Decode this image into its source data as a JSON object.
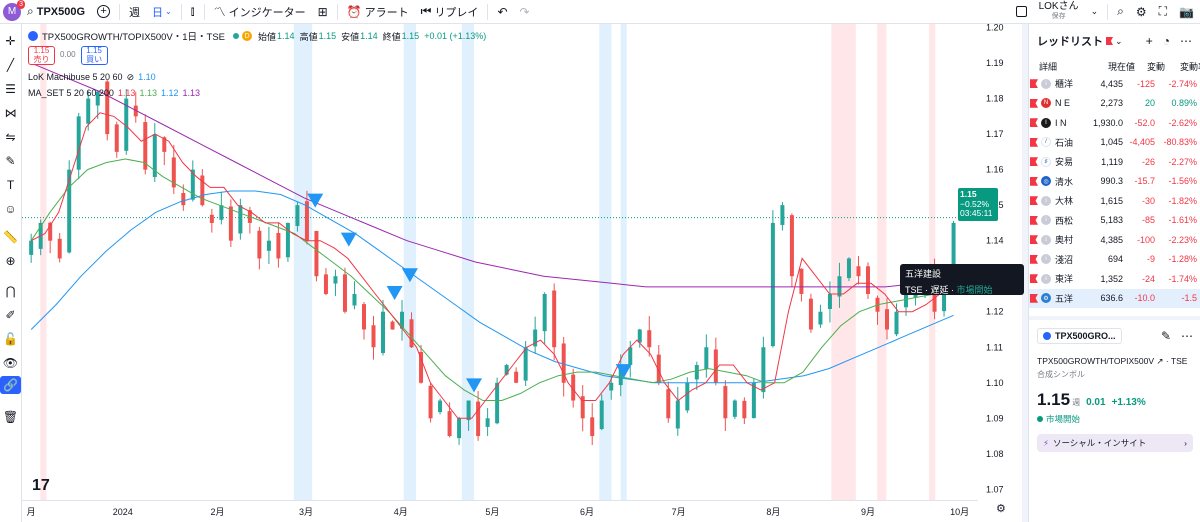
{
  "topbar": {
    "avatar_letter": "M",
    "avatar_badge": "3",
    "symbol": "TPX500G",
    "add_symbol": "+",
    "interval_week": "週",
    "interval_day": "日",
    "indicators": "インジケーター",
    "alert": "アラート",
    "replay": "リプレイ",
    "user_name": "LOKさん",
    "user_sub": "保存"
  },
  "legend": {
    "title": "TPX500GROWTH/TOPIX500V・1日・TSE",
    "d_badge": "D",
    "open_label": "始値",
    "open": "1.14",
    "high_label": "高値",
    "high": "1.15",
    "low_label": "安値",
    "low": "1.14",
    "close_label": "終値",
    "close": "1.15",
    "change": "+0.01 (+1.13%)",
    "sell_price": "1.15",
    "sell_label": "売り",
    "spread": "0.00",
    "buy_price": "1.15",
    "buy_label": "買い",
    "ind1_name": "LoK Machibuse 5 20 60",
    "ind1_v": "1.10",
    "ind2_name": "MA_SET 5 20 60 200",
    "ind2_v1": "1.13",
    "ind2_v2": "1.13",
    "ind2_v3": "1.12",
    "ind2_v4": "1.13"
  },
  "price_tag": {
    "price": "1.15",
    "pct": "−0.52%",
    "timer": "03:45:11"
  },
  "tooltip": {
    "name": "五洋建設",
    "exchange": "TSE",
    "delay": "遅延",
    "status": "市場開始"
  },
  "chart_data": {
    "type": "candlestick",
    "price_ticks": [
      "1.20",
      "1.19",
      "1.18",
      "1.17",
      "1.16",
      "1.15",
      "1.14",
      "1.13",
      "1.12",
      "1.11",
      "1.10",
      "1.09",
      "1.08",
      "1.07"
    ],
    "ylim": [
      1.067,
      1.201
    ],
    "time_ticks": [
      {
        "label": "月",
        "day": 0
      },
      {
        "label": "2024",
        "day": 30
      },
      {
        "label": "2月",
        "day": 61
      },
      {
        "label": "3月",
        "day": 90
      },
      {
        "label": "4月",
        "day": 121
      },
      {
        "label": "5月",
        "day": 151
      },
      {
        "label": "6月",
        "day": 182
      },
      {
        "label": "7月",
        "day": 212
      },
      {
        "label": "8月",
        "day": 243
      },
      {
        "label": "9月",
        "day": 274
      },
      {
        "label": "10月",
        "day": 304
      }
    ],
    "colors": {
      "up": "#26a69a",
      "down": "#ef5350",
      "ma5": "#f23645",
      "ma20": "#4caf50",
      "ma60": "#2196f3",
      "ma200": "#9c27b0",
      "signal": "#2196f3"
    },
    "close_path": [
      1.14,
      1.145,
      1.14,
      1.135,
      1.16,
      1.175,
      1.18,
      1.182,
      1.17,
      1.165,
      1.18,
      1.175,
      1.16,
      1.17,
      1.165,
      1.155,
      1.15,
      1.16,
      1.15,
      1.145,
      1.15,
      1.14,
      1.15,
      1.145,
      1.135,
      1.14,
      1.135,
      1.145,
      1.15,
      1.14,
      1.13,
      1.125,
      1.13,
      1.12,
      1.125,
      1.115,
      1.11,
      1.12,
      1.115,
      1.12,
      1.11,
      1.1,
      1.09,
      1.095,
      1.085,
      1.09,
      1.095,
      1.085,
      1.09,
      1.1,
      1.105,
      1.1,
      1.11,
      1.115,
      1.125,
      1.11,
      1.1,
      1.095,
      1.09,
      1.085,
      1.095,
      1.1,
      1.105,
      1.11,
      1.115,
      1.11,
      1.1,
      1.09,
      1.095,
      1.1,
      1.105,
      1.11,
      1.1,
      1.09,
      1.095,
      1.09,
      1.1,
      1.11,
      1.145,
      1.15,
      1.13,
      1.125,
      1.115,
      1.12,
      1.125,
      1.13,
      1.135,
      1.13,
      1.125,
      1.12,
      1.115,
      1.12,
      1.125,
      1.125,
      1.13,
      1.12,
      1.13,
      1.145
    ],
    "ma5": [
      1.14,
      1.142,
      1.148,
      1.16,
      1.172,
      1.176,
      1.175,
      1.172,
      1.168,
      1.17,
      1.168,
      1.162,
      1.158,
      1.155,
      1.155,
      1.15,
      1.148,
      1.145,
      1.145,
      1.142,
      1.14,
      1.14,
      1.138,
      1.135,
      1.13,
      1.125,
      1.12,
      1.115,
      1.11,
      1.1,
      1.095,
      1.09,
      1.09,
      1.095,
      1.1,
      1.105,
      1.11,
      1.112,
      1.108,
      1.1,
      1.095,
      1.095,
      1.1,
      1.108,
      1.112,
      1.108,
      1.1,
      1.095,
      1.098,
      1.1,
      1.105,
      1.105,
      1.1,
      1.098,
      1.1,
      1.12,
      1.135,
      1.13,
      1.125,
      1.125,
      1.128,
      1.128,
      1.125,
      1.12,
      1.12,
      1.122,
      1.125,
      1.13
    ],
    "ma20": [
      1.14,
      1.148,
      1.155,
      1.16,
      1.162,
      1.163,
      1.162,
      1.158,
      1.155,
      1.152,
      1.15,
      1.148,
      1.146,
      1.144,
      1.142,
      1.138,
      1.134,
      1.13,
      1.125,
      1.12,
      1.114,
      1.108,
      1.102,
      1.098,
      1.095,
      1.095,
      1.097,
      1.1,
      1.102,
      1.103,
      1.103,
      1.102,
      1.101,
      1.1,
      1.101,
      1.103,
      1.104,
      1.103,
      1.102,
      1.1,
      1.1,
      1.103,
      1.11,
      1.116,
      1.12,
      1.122,
      1.123,
      1.124,
      1.125,
      1.126
    ],
    "ma60": [
      1.115,
      1.122,
      1.13,
      1.137,
      1.143,
      1.148,
      1.151,
      1.153,
      1.154,
      1.154,
      1.153,
      1.15,
      1.146,
      1.142,
      1.137,
      1.132,
      1.127,
      1.122,
      1.117,
      1.113,
      1.109,
      1.106,
      1.104,
      1.102,
      1.101,
      1.1,
      1.1,
      1.1,
      1.1,
      1.1,
      1.101,
      1.102,
      1.104,
      1.107,
      1.11,
      1.113,
      1.116,
      1.119
    ],
    "ma200": [
      1.19,
      1.186,
      1.182,
      1.177,
      1.172,
      1.167,
      1.162,
      1.157,
      1.152,
      1.148,
      1.144,
      1.14,
      1.137,
      1.134,
      1.132,
      1.13,
      1.129,
      1.128,
      1.127,
      1.127,
      1.127,
      1.127,
      1.127,
      1.127,
      1.127,
      1.127,
      1.128,
      1.128
    ],
    "signals": [
      {
        "day": 93,
        "price": 1.151
      },
      {
        "day": 104,
        "price": 1.14
      },
      {
        "day": 124,
        "price": 1.13
      },
      {
        "day": 119,
        "price": 1.125
      },
      {
        "day": 145,
        "price": 1.099
      },
      {
        "day": 194,
        "price": 1.103
      }
    ],
    "blue_bands": [
      [
        86,
        92
      ],
      [
        122,
        126
      ],
      [
        141,
        145
      ],
      [
        186,
        190
      ],
      [
        193,
        195
      ]
    ],
    "red_bands": [
      [
        3,
        5
      ],
      [
        262,
        270
      ],
      [
        277,
        280
      ],
      [
        294,
        296
      ]
    ]
  },
  "watchlist": {
    "title": "レッドリスト",
    "cols": {
      "detail": "詳細",
      "price": "現在値",
      "chg": "変動",
      "pct": "変動率"
    },
    "rows": [
      {
        "icon": "i",
        "icon_bg": "#c9ccd6",
        "name": "櫃洋",
        "price": "4,435",
        "chg": "-125",
        "pct": "-2.74%",
        "dir": "neg"
      },
      {
        "icon": "N",
        "icon_bg": "#e0302e",
        "name": "N E",
        "price": "2,273",
        "chg": "20",
        "pct": "0.89%",
        "dir": "pos"
      },
      {
        "icon": "I",
        "icon_bg": "#1a1a1a",
        "name": "I N",
        "price": "1,930.0",
        "chg": "-52.0",
        "pct": "-2.62%",
        "dir": "neg"
      },
      {
        "icon": "/",
        "icon_bg": "#ffffff",
        "name": "石油",
        "price": "1,045",
        "chg": "-4,405",
        "pct": "-80.83%",
        "dir": "neg"
      },
      {
        "icon": "♯",
        "icon_bg": "#ffffff",
        "name": "安易",
        "price": "1,119",
        "chg": "-26",
        "pct": "-2.27%",
        "dir": "neg"
      },
      {
        "icon": "◎",
        "icon_bg": "#1e63c8",
        "name": "清水",
        "price": "990.3",
        "chg": "-15.7",
        "pct": "-1.56%",
        "dir": "neg"
      },
      {
        "icon": "i",
        "icon_bg": "#c9ccd6",
        "name": "大林",
        "price": "1,615",
        "chg": "-30",
        "pct": "-1.82%",
        "dir": "neg"
      },
      {
        "icon": "i",
        "icon_bg": "#c9ccd6",
        "name": "西松",
        "price": "5,183",
        "chg": "-85",
        "pct": "-1.61%",
        "dir": "neg"
      },
      {
        "icon": "i",
        "icon_bg": "#c9ccd6",
        "name": "奥村",
        "price": "4,385",
        "chg": "-100",
        "pct": "-2.23%",
        "dir": "neg"
      },
      {
        "icon": "i",
        "icon_bg": "#c9ccd6",
        "name": "淺沼",
        "price": "694",
        "chg": "-9",
        "pct": "-1.28%",
        "dir": "neg"
      },
      {
        "icon": "i",
        "icon_bg": "#c9ccd6",
        "name": "東洋",
        "price": "1,352",
        "chg": "-24",
        "pct": "-1.74%",
        "dir": "neg"
      },
      {
        "icon": "⚙",
        "icon_bg": "#2a7fd4",
        "name": "五洋",
        "price": "636.6",
        "chg": "-10.0",
        "pct": "-1.5",
        "dir": "neg"
      }
    ]
  },
  "detail": {
    "symbol": "TPX500GRO...",
    "fullname": "TPX500GROWTH/TOPIX500V",
    "exchange": "TSE",
    "type": "合成シンボル",
    "price": "1.15",
    "unit": "週",
    "chg": "0.01",
    "pct": "+1.13%",
    "status": "市場開始",
    "social": "ソーシャル・インサイト"
  }
}
